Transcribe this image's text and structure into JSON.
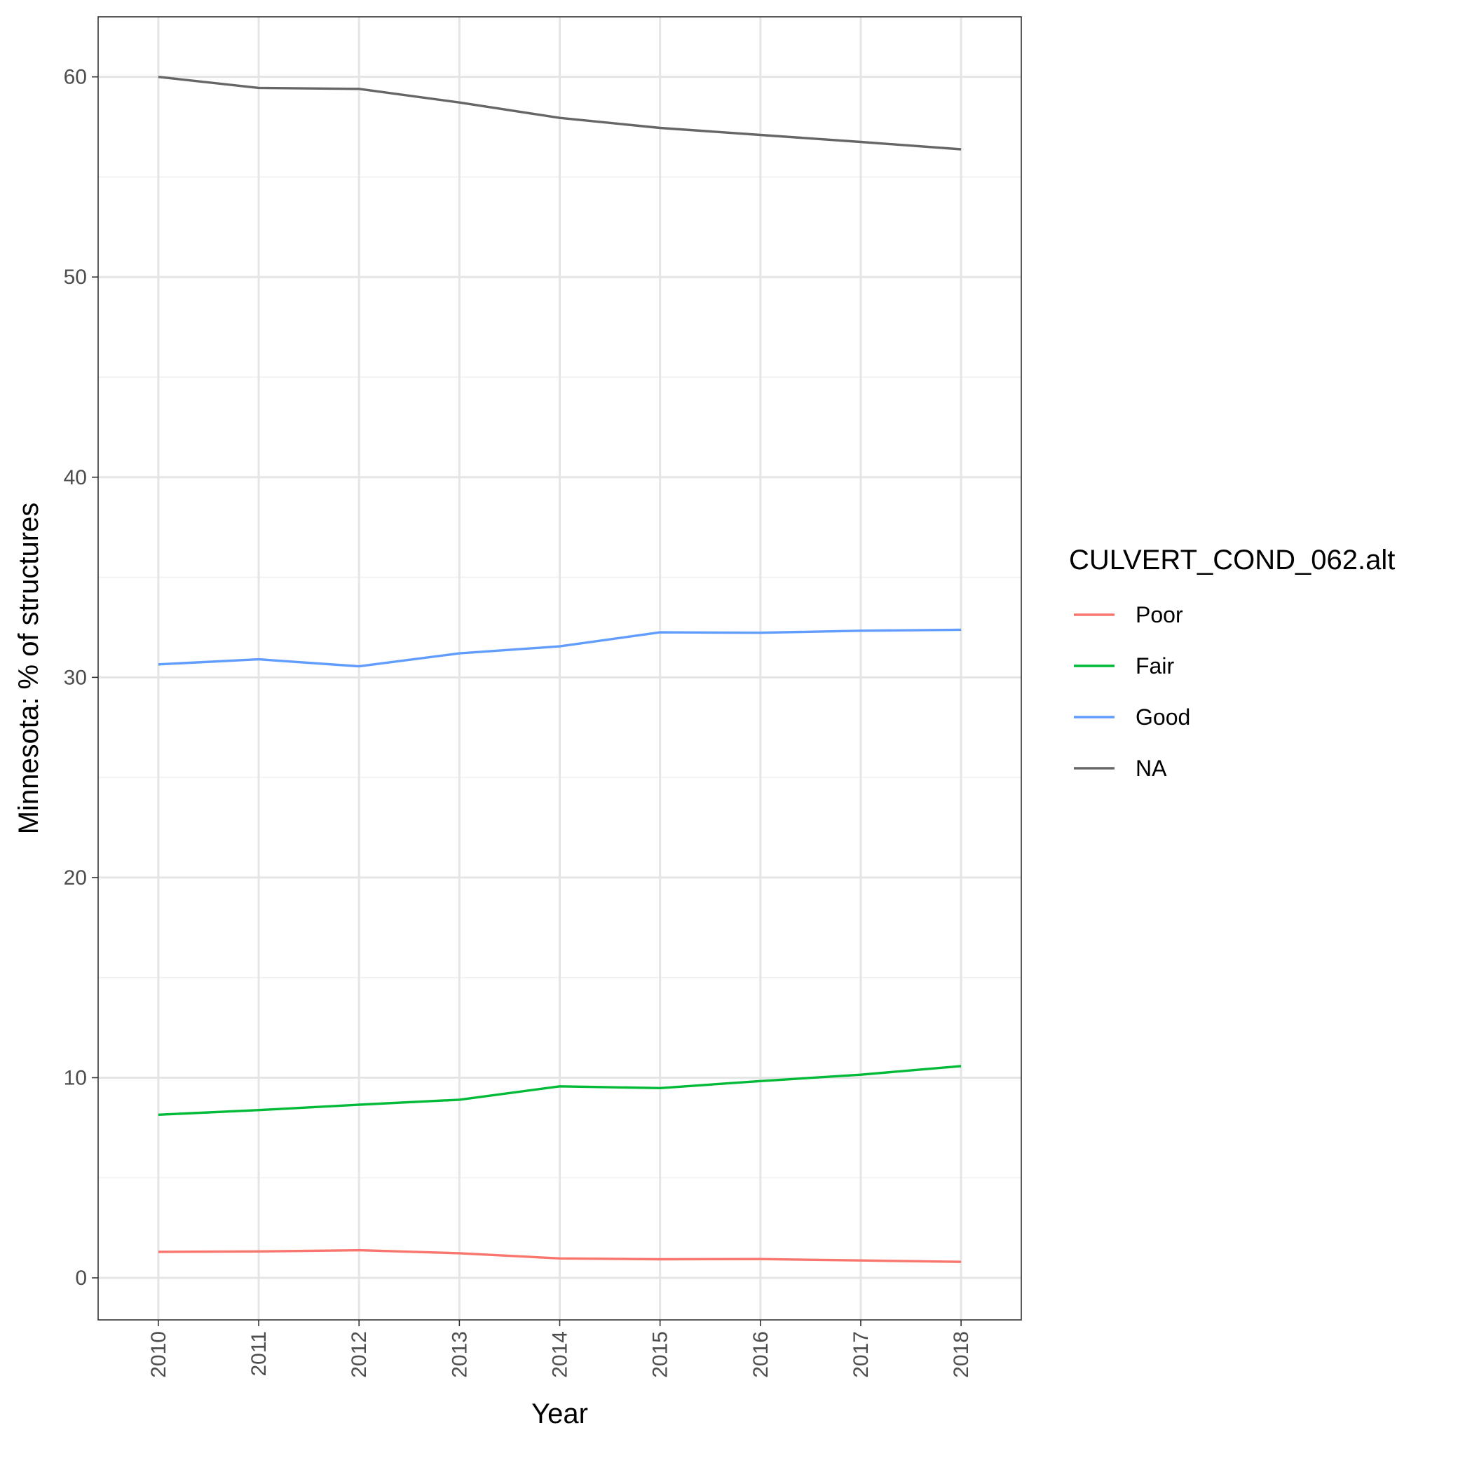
{
  "chart_data": {
    "type": "line",
    "title": "",
    "xlabel": "Year",
    "ylabel": "Minnesota: % of structures",
    "x": [
      2010,
      2011,
      2012,
      2013,
      2014,
      2015,
      2016,
      2017,
      2018
    ],
    "x_tick_labels": [
      "2010",
      "2011",
      "2012",
      "2013",
      "2014",
      "2015",
      "2016",
      "2017",
      "2018"
    ],
    "y_ticks": [
      0,
      10,
      20,
      30,
      40,
      50,
      60
    ],
    "y_tick_labels": [
      "0",
      "10",
      "20",
      "30",
      "40",
      "50",
      "60"
    ],
    "ylim": [
      -2.1,
      63
    ],
    "xlim": [
      2009.4,
      2018.6
    ],
    "grid": true,
    "legend_title": "CULVERT_COND_062.alt",
    "legend_position": "right",
    "series": [
      {
        "name": "Poor",
        "color": "#F8766D",
        "values": [
          1.3,
          1.32,
          1.38,
          1.23,
          0.97,
          0.93,
          0.94,
          0.87,
          0.8
        ]
      },
      {
        "name": "Fair",
        "color": "#00BA38",
        "values": [
          8.15,
          8.38,
          8.65,
          8.9,
          9.57,
          9.48,
          9.83,
          10.15,
          10.58
        ]
      },
      {
        "name": "Good",
        "color": "#619CFF",
        "values": [
          30.65,
          30.9,
          30.55,
          31.2,
          31.55,
          32.25,
          32.23,
          32.33,
          32.38
        ]
      },
      {
        "name": "NA",
        "color": "#666666",
        "values": [
          60.0,
          59.45,
          59.4,
          58.72,
          57.95,
          57.45,
          57.1,
          56.75,
          56.38
        ]
      }
    ]
  }
}
